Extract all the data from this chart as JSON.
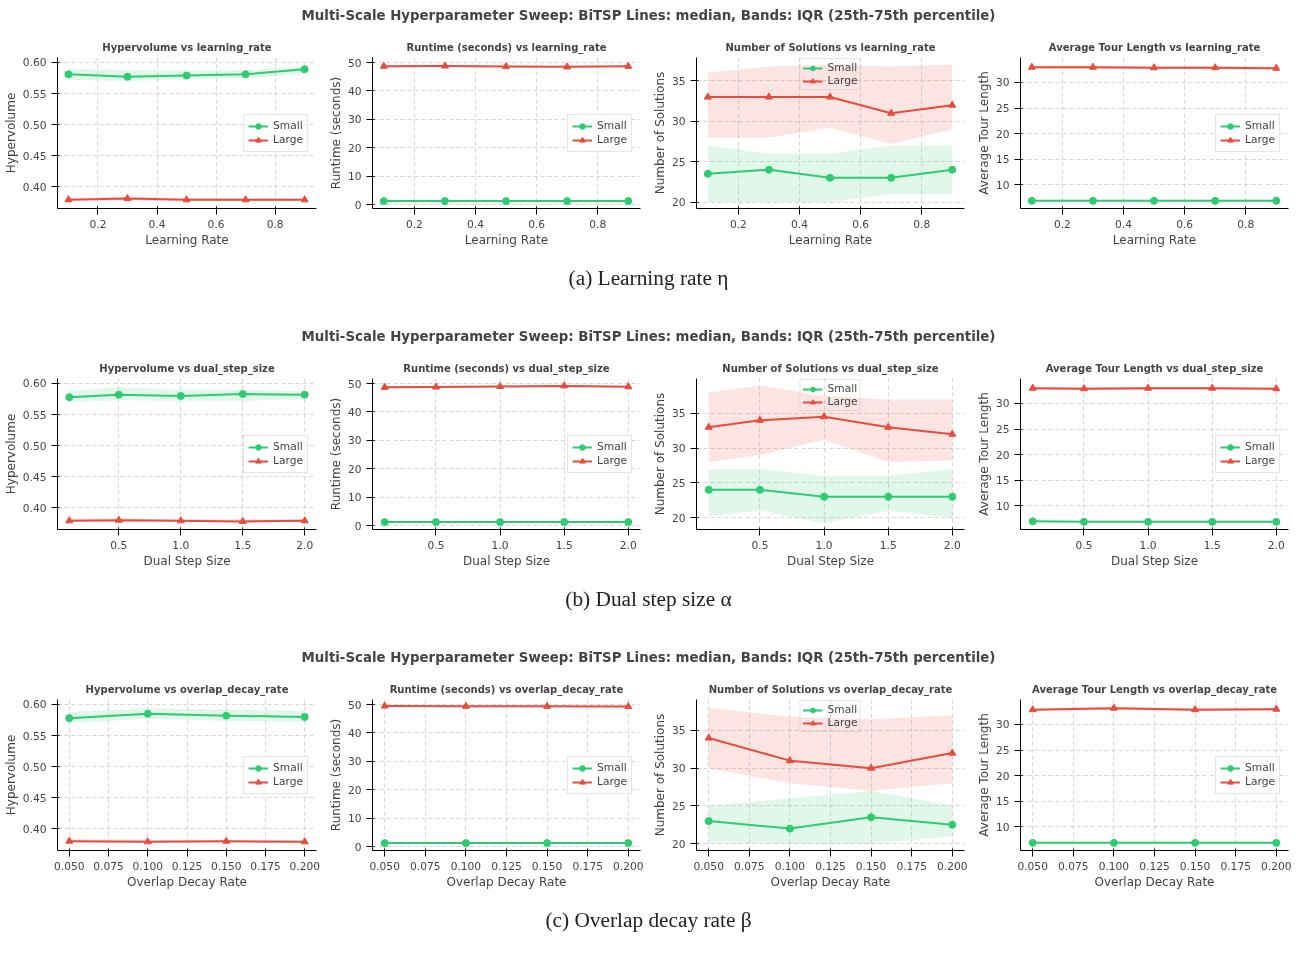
{
  "chart_data": [
    {
      "type": "other",
      "title": "Multi-Scale Hyperparameter Sweep: BiTSP Lines: median, Bands: IQR (25th-75th percentile)"
    },
    {
      "type": "line",
      "title": "Hypervolume vs learning_rate",
      "xlabel": "Learning Rate",
      "ylabel": "Hypervolume",
      "x": [
        0.1,
        0.3,
        0.5,
        0.7,
        0.9
      ],
      "xlim": [
        0.063,
        0.94
      ],
      "xticks": [
        0.2,
        0.4,
        0.6,
        0.8
      ],
      "ylim": [
        0.365,
        0.608
      ],
      "yticks": [
        {
          "value": 0.4,
          "label": "0.40"
        },
        {
          "value": 0.45,
          "label": "0.45"
        },
        {
          "value": 0.5,
          "label": "0.50"
        },
        {
          "value": 0.55,
          "label": "0.55"
        },
        {
          "value": 0.6,
          "label": "0.60"
        }
      ],
      "grid": true,
      "legend": "right",
      "line_style": "solid",
      "series": [
        {
          "name": "Small",
          "color": "#2ecc71",
          "marker": "circle",
          "values": [
            0.581,
            0.577,
            0.579,
            0.581,
            0.589
          ],
          "lower": [
            0.572,
            0.57,
            0.573,
            0.575,
            0.582
          ],
          "upper": [
            0.59,
            0.588,
            0.587,
            0.588,
            0.594
          ]
        },
        {
          "name": "Large",
          "color": "#e74c3c",
          "marker": "triangle",
          "values": [
            0.379,
            0.381,
            0.379,
            0.379,
            0.379
          ],
          "lower": [
            0.377,
            0.378,
            0.377,
            0.377,
            0.377
          ],
          "upper": [
            0.382,
            0.384,
            0.382,
            0.381,
            0.381
          ]
        }
      ]
    },
    {
      "type": "line",
      "title": "Runtime (seconds) vs learning_rate",
      "xlabel": "Learning Rate",
      "ylabel": "Runtime (seconds)",
      "x": [
        0.1,
        0.3,
        0.5,
        0.7,
        0.9
      ],
      "xlim": [
        0.063,
        0.94
      ],
      "xticks": [
        0.2,
        0.4,
        0.6,
        0.8
      ],
      "ylim": [
        -1.4,
        51.8
      ],
      "yticks": [
        0,
        10,
        20,
        30,
        40,
        50
      ],
      "grid": true,
      "legend": "right",
      "line_style": "solid",
      "series": [
        {
          "name": "Small",
          "color": "#2ecc71",
          "marker": "circle",
          "values": [
            1.2,
            1.2,
            1.2,
            1.2,
            1.2
          ]
        },
        {
          "name": "Large",
          "color": "#e74c3c",
          "marker": "triangle",
          "values": [
            48.7,
            48.8,
            48.6,
            48.5,
            48.7
          ],
          "lower": [
            48.4,
            48.5,
            48.3,
            48.2,
            48.4
          ],
          "upper": [
            49.0,
            49.1,
            48.9,
            48.8,
            49.0
          ]
        }
      ]
    },
    {
      "type": "line",
      "title": "Number of Solutions vs learning_rate",
      "xlabel": "Learning Rate",
      "ylabel": "Number of Solutions",
      "x": [
        0.1,
        0.3,
        0.5,
        0.7,
        0.9
      ],
      "xlim": [
        0.063,
        0.94
      ],
      "xticks": [
        0.2,
        0.4,
        0.6,
        0.8
      ],
      "ylim": [
        19.2,
        37.9
      ],
      "yticks": [
        20,
        25,
        30,
        35
      ],
      "grid": true,
      "legend": "top",
      "line_style": "solid",
      "series": [
        {
          "name": "Small",
          "color": "#2ecc71",
          "marker": "circle",
          "values": [
            23.5,
            24,
            23,
            23,
            24
          ],
          "lower": [
            20,
            20,
            20,
            21,
            21
          ],
          "upper": [
            27,
            26,
            26,
            27,
            27
          ]
        },
        {
          "name": "Large",
          "color": "#e74c3c",
          "marker": "triangle",
          "values": [
            33,
            33,
            33,
            31,
            32
          ],
          "lower": [
            28,
            28,
            29.2,
            27.2,
            29
          ],
          "upper": [
            36,
            36.8,
            37,
            36.8,
            37
          ]
        }
      ]
    },
    {
      "type": "line",
      "title": "Average Tour Length vs learning_rate",
      "xlabel": "Learning Rate",
      "ylabel": "Average Tour Length",
      "x": [
        0.1,
        0.3,
        0.5,
        0.7,
        0.9
      ],
      "xlim": [
        0.063,
        0.94
      ],
      "xticks": [
        0.2,
        0.4,
        0.6,
        0.8
      ],
      "ylim": [
        5.3,
        34.9
      ],
      "yticks": [
        10,
        15,
        20,
        25,
        30
      ],
      "grid": true,
      "legend": "right",
      "line_style": "solid",
      "series": [
        {
          "name": "Small",
          "color": "#2ecc71",
          "marker": "circle",
          "values": [
            6.8,
            6.8,
            6.8,
            6.8,
            6.8
          ],
          "lower": [
            6.6,
            6.6,
            6.6,
            6.6,
            6.6
          ],
          "upper": [
            7.0,
            7.0,
            7.0,
            7.0,
            7.0
          ]
        },
        {
          "name": "Large",
          "color": "#e74c3c",
          "marker": "triangle",
          "values": [
            33.0,
            33.0,
            32.9,
            32.9,
            32.8
          ],
          "lower": [
            32.7,
            32.7,
            32.6,
            32.6,
            32.5
          ],
          "upper": [
            33.3,
            33.3,
            33.2,
            33.2,
            33.1
          ]
        }
      ]
    },
    {
      "type": "other",
      "annotations": [
        "(a) Learning rate η"
      ]
    },
    {
      "type": "other",
      "title": "Multi-Scale Hyperparameter Sweep: BiTSP Lines: median, Bands: IQR (25th-75th percentile)"
    },
    {
      "type": "line",
      "title": "Hypervolume vs dual_step_size",
      "xlabel": "Dual Step Size",
      "ylabel": "Hypervolume",
      "x": [
        0.1,
        0.5,
        1.0,
        1.5,
        2.0
      ],
      "xlim": [
        0.005,
        2.095
      ],
      "xticks": [
        0.5,
        {
          "value": 1.0,
          "label": "1.0"
        },
        1.5,
        {
          "value": 2.0,
          "label": "2.0"
        }
      ],
      "ylim": [
        0.365,
        0.608
      ],
      "yticks": [
        {
          "value": 0.4,
          "label": "0.40"
        },
        {
          "value": 0.45,
          "label": "0.45"
        },
        {
          "value": 0.5,
          "label": "0.50"
        },
        {
          "value": 0.55,
          "label": "0.55"
        },
        {
          "value": 0.6,
          "label": "0.60"
        }
      ],
      "grid": true,
      "legend": "right",
      "line_style": "solid",
      "series": [
        {
          "name": "Small",
          "color": "#2ecc71",
          "marker": "circle",
          "values": [
            0.578,
            0.582,
            0.58,
            0.583,
            0.582
          ],
          "lower": [
            0.57,
            0.573,
            0.572,
            0.572,
            0.575
          ],
          "upper": [
            0.588,
            0.594,
            0.59,
            0.59,
            0.587
          ]
        },
        {
          "name": "Large",
          "color": "#e74c3c",
          "marker": "triangle",
          "values": [
            0.379,
            0.38,
            0.379,
            0.378,
            0.379
          ],
          "lower": [
            0.377,
            0.378,
            0.377,
            0.376,
            0.377
          ],
          "upper": [
            0.382,
            0.383,
            0.381,
            0.381,
            0.381
          ]
        }
      ]
    },
    {
      "type": "line",
      "title": "Runtime (seconds) vs dual_step_size",
      "xlabel": "Dual Step Size",
      "ylabel": "Runtime (seconds)",
      "x": [
        0.1,
        0.5,
        1.0,
        1.5,
        2.0
      ],
      "xlim": [
        0.005,
        2.095
      ],
      "xticks": [
        0.5,
        {
          "value": 1.0,
          "label": "1.0"
        },
        1.5,
        {
          "value": 2.0,
          "label": "2.0"
        }
      ],
      "ylim": [
        -1.4,
        51.8
      ],
      "yticks": [
        0,
        10,
        20,
        30,
        40,
        50
      ],
      "grid": true,
      "legend": "right",
      "line_style": "solid",
      "series": [
        {
          "name": "Small",
          "color": "#2ecc71",
          "marker": "circle",
          "values": [
            1.2,
            1.2,
            1.2,
            1.2,
            1.2
          ]
        },
        {
          "name": "Large",
          "color": "#e74c3c",
          "marker": "triangle",
          "values": [
            48.7,
            48.8,
            49.0,
            49.2,
            48.9
          ],
          "lower": [
            48.4,
            48.5,
            48.7,
            48.9,
            48.6
          ],
          "upper": [
            49.0,
            49.1,
            49.3,
            49.5,
            49.2
          ]
        }
      ]
    },
    {
      "type": "line",
      "title": "Number of Solutions vs dual_step_size",
      "xlabel": "Dual Step Size",
      "ylabel": "Number of Solutions",
      "x": [
        0.1,
        0.5,
        1.0,
        1.5,
        2.0
      ],
      "xlim": [
        0.005,
        2.095
      ],
      "xticks": [
        0.5,
        {
          "value": 1.0,
          "label": "1.0"
        },
        1.5,
        {
          "value": 2.0,
          "label": "2.0"
        }
      ],
      "ylim": [
        18.3,
        40
      ],
      "yticks": [
        20,
        25,
        30,
        35
      ],
      "grid": true,
      "legend": "top",
      "line_style": "solid",
      "series": [
        {
          "name": "Small",
          "color": "#2ecc71",
          "marker": "circle",
          "values": [
            24,
            24,
            23,
            23,
            23
          ],
          "lower": [
            20.2,
            21,
            19.2,
            21,
            20
          ],
          "upper": [
            27,
            27,
            26,
            26,
            27
          ]
        },
        {
          "name": "Large",
          "color": "#e74c3c",
          "marker": "triangle",
          "values": [
            33,
            34,
            34.5,
            33,
            32
          ],
          "lower": [
            28,
            29,
            31.2,
            28,
            28.2
          ],
          "upper": [
            38,
            39,
            37.5,
            37,
            37
          ]
        }
      ]
    },
    {
      "type": "line",
      "title": "Average Tour Length vs dual_step_size",
      "xlabel": "Dual Step Size",
      "ylabel": "Average Tour Length",
      "x": [
        0.1,
        0.5,
        1.0,
        1.5,
        2.0
      ],
      "xlim": [
        0.005,
        2.095
      ],
      "xticks": [
        0.5,
        {
          "value": 1.0,
          "label": "1.0"
        },
        1.5,
        {
          "value": 2.0,
          "label": "2.0"
        }
      ],
      "ylim": [
        5.3,
        34.9
      ],
      "yticks": [
        10,
        15,
        20,
        25,
        30
      ],
      "grid": true,
      "legend": "right",
      "line_style": "solid",
      "series": [
        {
          "name": "Small",
          "color": "#2ecc71",
          "marker": "circle",
          "values": [
            6.9,
            6.8,
            6.8,
            6.8,
            6.8
          ],
          "lower": [
            6.7,
            6.6,
            6.6,
            6.6,
            6.6
          ],
          "upper": [
            7.1,
            7.0,
            7.0,
            7.0,
            7.0
          ]
        },
        {
          "name": "Large",
          "color": "#e74c3c",
          "marker": "triangle",
          "values": [
            33.0,
            32.9,
            33.0,
            33.0,
            32.9
          ],
          "lower": [
            32.7,
            32.6,
            32.7,
            32.7,
            32.6
          ],
          "upper": [
            33.3,
            33.2,
            33.3,
            33.3,
            33.2
          ]
        }
      ]
    },
    {
      "type": "other",
      "annotations": [
        "(b) Dual step size α"
      ]
    },
    {
      "type": "other",
      "title": "Multi-Scale Hyperparameter Sweep: BiTSP Lines: median, Bands: IQR (25th-75th percentile)"
    },
    {
      "type": "line",
      "title": "Hypervolume vs overlap_decay_rate",
      "xlabel": "Overlap Decay Rate",
      "ylabel": "Hypervolume",
      "x": [
        0.05,
        0.1,
        0.15,
        0.2
      ],
      "xlim": [
        0.0425,
        0.2075
      ],
      "xticks": [
        {
          "value": 0.05,
          "label": "0.050"
        },
        0.075,
        {
          "value": 0.1,
          "label": "0.100"
        },
        0.125,
        {
          "value": 0.15,
          "label": "0.150"
        },
        0.175,
        {
          "value": 0.2,
          "label": "0.200"
        }
      ],
      "ylim": [
        0.365,
        0.608
      ],
      "yticks": [
        {
          "value": 0.4,
          "label": "0.40"
        },
        {
          "value": 0.45,
          "label": "0.45"
        },
        {
          "value": 0.5,
          "label": "0.50"
        },
        {
          "value": 0.55,
          "label": "0.55"
        },
        {
          "value": 0.6,
          "label": "0.60"
        }
      ],
      "grid": true,
      "legend": "right",
      "line_style": "solid",
      "series": [
        {
          "name": "Small",
          "color": "#2ecc71",
          "marker": "circle",
          "values": [
            0.578,
            0.585,
            0.582,
            0.58
          ],
          "lower": [
            0.57,
            0.577,
            0.574,
            0.572
          ],
          "upper": [
            0.588,
            0.594,
            0.592,
            0.59
          ]
        },
        {
          "name": "Large",
          "color": "#e74c3c",
          "marker": "triangle",
          "values": [
            0.38,
            0.379,
            0.38,
            0.379
          ],
          "lower": [
            0.378,
            0.377,
            0.378,
            0.377
          ],
          "upper": [
            0.383,
            0.382,
            0.382,
            0.381
          ]
        }
      ]
    },
    {
      "type": "line",
      "title": "Runtime (seconds) vs overlap_decay_rate",
      "xlabel": "Overlap Decay Rate",
      "ylabel": "Runtime (seconds)",
      "x": [
        0.05,
        0.1,
        0.15,
        0.2
      ],
      "xlim": [
        0.0425,
        0.2075
      ],
      "xticks": [
        {
          "value": 0.05,
          "label": "0.050"
        },
        0.075,
        {
          "value": 0.1,
          "label": "0.100"
        },
        0.125,
        {
          "value": 0.15,
          "label": "0.150"
        },
        0.175,
        {
          "value": 0.2,
          "label": "0.200"
        }
      ],
      "ylim": [
        -1.4,
        51.8
      ],
      "yticks": [
        0,
        10,
        20,
        30,
        40,
        50
      ],
      "grid": true,
      "legend": "right",
      "line_style": "solid",
      "series": [
        {
          "name": "Small",
          "color": "#2ecc71",
          "marker": "circle",
          "values": [
            1.2,
            1.2,
            1.2,
            1.2
          ]
        },
        {
          "name": "Large",
          "color": "#e74c3c",
          "marker": "triangle",
          "values": [
            49.5,
            49.4,
            49.4,
            49.3
          ],
          "lower": [
            49.2,
            49.1,
            49.1,
            49.0
          ],
          "upper": [
            49.8,
            49.7,
            49.7,
            49.6
          ]
        }
      ]
    },
    {
      "type": "line",
      "title": "Number of Solutions vs overlap_decay_rate",
      "xlabel": "Overlap Decay Rate",
      "ylabel": "Number of Solutions",
      "x": [
        0.05,
        0.1,
        0.15,
        0.2
      ],
      "xlim": [
        0.0425,
        0.2075
      ],
      "xticks": [
        {
          "value": 0.05,
          "label": "0.050"
        },
        0.075,
        {
          "value": 0.1,
          "label": "0.100"
        },
        0.125,
        {
          "value": 0.15,
          "label": "0.150"
        },
        0.175,
        {
          "value": 0.2,
          "label": "0.200"
        }
      ],
      "ylim": [
        19.1,
        39.1
      ],
      "yticks": [
        20,
        25,
        30,
        35
      ],
      "grid": true,
      "legend": "top",
      "line_style": "solid",
      "series": [
        {
          "name": "Small",
          "color": "#2ecc71",
          "marker": "circle",
          "values": [
            23,
            22,
            23.5,
            22.5
          ],
          "lower": [
            20.2,
            20,
            20,
            21
          ],
          "upper": [
            25,
            26,
            27,
            25
          ]
        },
        {
          "name": "Large",
          "color": "#e74c3c",
          "marker": "triangle",
          "values": [
            34,
            31,
            30,
            32
          ],
          "lower": [
            30,
            28,
            27,
            28
          ],
          "upper": [
            38,
            36.8,
            36.5,
            37
          ]
        }
      ]
    },
    {
      "type": "line",
      "title": "Average Tour Length vs overlap_decay_rate",
      "xlabel": "Overlap Decay Rate",
      "ylabel": "Average Tour Length",
      "x": [
        0.05,
        0.1,
        0.15,
        0.2
      ],
      "xlim": [
        0.0425,
        0.2075
      ],
      "xticks": [
        {
          "value": 0.05,
          "label": "0.050"
        },
        0.075,
        {
          "value": 0.1,
          "label": "0.100"
        },
        0.125,
        {
          "value": 0.15,
          "label": "0.150"
        },
        0.175,
        {
          "value": 0.2,
          "label": "0.200"
        }
      ],
      "ylim": [
        5.3,
        34.9
      ],
      "yticks": [
        10,
        15,
        20,
        25,
        30
      ],
      "grid": true,
      "legend": "right",
      "line_style": "solid",
      "series": [
        {
          "name": "Small",
          "color": "#2ecc71",
          "marker": "circle",
          "values": [
            6.8,
            6.8,
            6.8,
            6.8
          ],
          "lower": [
            6.6,
            6.6,
            6.6,
            6.6
          ],
          "upper": [
            7.0,
            7.0,
            7.0,
            7.0
          ]
        },
        {
          "name": "Large",
          "color": "#e74c3c",
          "marker": "triangle",
          "values": [
            32.9,
            33.2,
            32.9,
            33.0
          ],
          "lower": [
            32.6,
            32.9,
            32.6,
            32.7
          ],
          "upper": [
            33.2,
            33.5,
            33.2,
            33.3
          ]
        }
      ]
    },
    {
      "type": "other",
      "annotations": [
        "(c) Overlap decay rate β"
      ]
    }
  ]
}
